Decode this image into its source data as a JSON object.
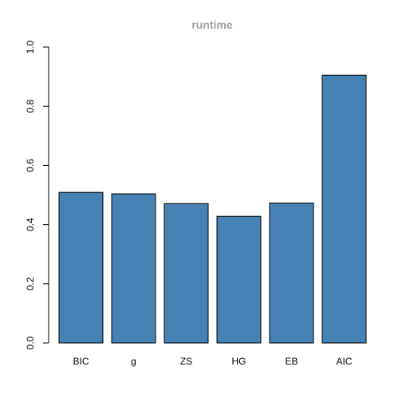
{
  "chart_data": {
    "type": "bar",
    "title": "runtime",
    "xlabel": "",
    "ylabel": "",
    "categories": [
      "BIC",
      "g",
      "ZS",
      "HG",
      "EB",
      "AIC"
    ],
    "values": [
      0.509,
      0.504,
      0.471,
      0.428,
      0.473,
      0.905
    ],
    "ylim": [
      0,
      1
    ],
    "yticks": [
      "0.0",
      "0.2",
      "0.4",
      "0.6",
      "0.8",
      "1.0"
    ],
    "grid": false,
    "bar_color": "#4682B4",
    "title_color": "#A0A0A0"
  }
}
